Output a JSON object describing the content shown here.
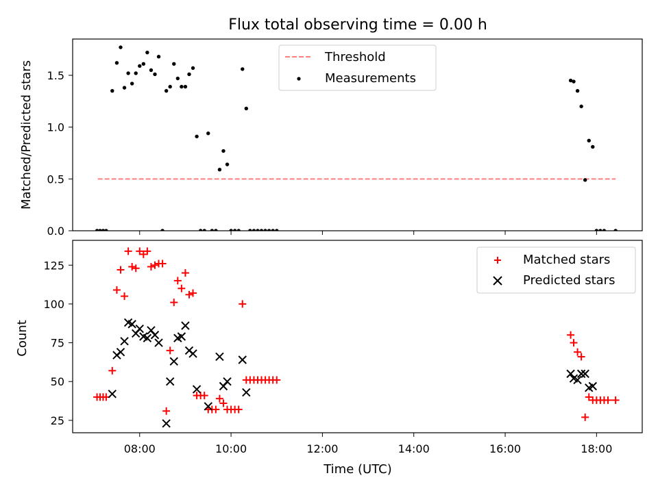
{
  "chart_data": [
    {
      "type": "scatter",
      "title": "Flux total observing time = 0.00 h",
      "xlabel": "",
      "ylabel": "Matched/Predicted stars",
      "xlim": [
        "06:32",
        "19:00"
      ],
      "ylim": [
        0,
        1.85
      ],
      "yticks": [
        0.0,
        0.5,
        1.0,
        1.5
      ],
      "ytick_labels": [
        "0.0",
        "0.5",
        "1.0",
        "1.5"
      ],
      "legend_position": "top-center",
      "threshold": {
        "name": "Threshold",
        "value": 0.5,
        "x_start": "07:05",
        "x_end": "18:25",
        "color": "#ff7f7f",
        "style": "dashed"
      },
      "series": [
        {
          "name": "Measurements",
          "color": "#000000",
          "marker": "dot",
          "points": [
            [
              "07:04",
              0.0
            ],
            [
              "07:08",
              0.0
            ],
            [
              "07:12",
              0.0
            ],
            [
              "07:16",
              0.0
            ],
            [
              "07:24",
              1.35
            ],
            [
              "07:30",
              1.62
            ],
            [
              "07:35",
              1.77
            ],
            [
              "07:40",
              1.38
            ],
            [
              "07:45",
              1.52
            ],
            [
              "07:50",
              1.42
            ],
            [
              "07:55",
              1.52
            ],
            [
              "08:00",
              1.59
            ],
            [
              "08:05",
              1.61
            ],
            [
              "08:10",
              1.72
            ],
            [
              "08:15",
              1.55
            ],
            [
              "08:20",
              1.51
            ],
            [
              "08:25",
              1.68
            ],
            [
              "08:30",
              0.0
            ],
            [
              "08:35",
              1.35
            ],
            [
              "08:40",
              1.39
            ],
            [
              "08:45",
              1.61
            ],
            [
              "08:50",
              1.47
            ],
            [
              "08:55",
              1.39
            ],
            [
              "09:00",
              1.39
            ],
            [
              "09:05",
              1.51
            ],
            [
              "09:10",
              1.57
            ],
            [
              "09:15",
              0.91
            ],
            [
              "09:20",
              0.0
            ],
            [
              "09:25",
              0.0
            ],
            [
              "09:30",
              0.94
            ],
            [
              "09:35",
              0.0
            ],
            [
              "09:40",
              0.0
            ],
            [
              "09:45",
              0.59
            ],
            [
              "09:50",
              0.77
            ],
            [
              "09:55",
              0.64
            ],
            [
              "10:00",
              0.0
            ],
            [
              "10:05",
              0.0
            ],
            [
              "10:10",
              0.0
            ],
            [
              "10:15",
              1.56
            ],
            [
              "10:20",
              1.18
            ],
            [
              "10:25",
              0.0
            ],
            [
              "10:30",
              0.0
            ],
            [
              "10:35",
              0.0
            ],
            [
              "10:40",
              0.0
            ],
            [
              "10:45",
              0.0
            ],
            [
              "10:50",
              0.0
            ],
            [
              "10:55",
              0.0
            ],
            [
              "11:00",
              0.0
            ],
            [
              "17:26",
              1.45
            ],
            [
              "17:30",
              1.44
            ],
            [
              "17:35",
              1.35
            ],
            [
              "17:40",
              1.2
            ],
            [
              "17:45",
              0.49
            ],
            [
              "17:50",
              0.87
            ],
            [
              "17:55",
              0.81
            ],
            [
              "18:00",
              0.0
            ],
            [
              "18:05",
              0.0
            ],
            [
              "18:10",
              0.0
            ],
            [
              "18:25",
              0.0
            ]
          ]
        }
      ]
    },
    {
      "type": "scatter",
      "title": "",
      "xlabel": "Time (UTC)",
      "ylabel": "Count",
      "xlim": [
        "06:32",
        "19:00"
      ],
      "ylim": [
        17,
        141
      ],
      "xticks": [
        "08:00",
        "10:00",
        "12:00",
        "14:00",
        "16:00",
        "18:00"
      ],
      "yticks": [
        25,
        50,
        75,
        100,
        125
      ],
      "ytick_labels": [
        "25",
        "50",
        "75",
        "100",
        "125"
      ],
      "legend_position": "top-right",
      "series": [
        {
          "name": "Matched stars",
          "color": "#ff0000",
          "marker": "plus",
          "points": [
            [
              "07:04",
              40
            ],
            [
              "07:08",
              40
            ],
            [
              "07:12",
              40
            ],
            [
              "07:16",
              40
            ],
            [
              "07:24",
              57
            ],
            [
              "07:30",
              109
            ],
            [
              "07:35",
              122
            ],
            [
              "07:40",
              105
            ],
            [
              "07:45",
              134
            ],
            [
              "07:50",
              124
            ],
            [
              "07:55",
              123
            ],
            [
              "08:00",
              134
            ],
            [
              "08:05",
              132
            ],
            [
              "08:10",
              134
            ],
            [
              "08:15",
              124
            ],
            [
              "08:20",
              125
            ],
            [
              "08:25",
              126
            ],
            [
              "08:30",
              126
            ],
            [
              "08:35",
              31
            ],
            [
              "08:40",
              70
            ],
            [
              "08:45",
              101
            ],
            [
              "08:50",
              115
            ],
            [
              "08:55",
              110
            ],
            [
              "09:00",
              120
            ],
            [
              "09:05",
              106
            ],
            [
              "09:10",
              107
            ],
            [
              "09:15",
              41
            ],
            [
              "09:20",
              41
            ],
            [
              "09:25",
              41
            ],
            [
              "09:30",
              32
            ],
            [
              "09:35",
              32
            ],
            [
              "09:40",
              32
            ],
            [
              "09:45",
              39
            ],
            [
              "09:50",
              36
            ],
            [
              "09:55",
              32
            ],
            [
              "10:00",
              32
            ],
            [
              "10:05",
              32
            ],
            [
              "10:10",
              32
            ],
            [
              "10:15",
              100
            ],
            [
              "10:20",
              51
            ],
            [
              "10:25",
              51
            ],
            [
              "10:30",
              51
            ],
            [
              "10:35",
              51
            ],
            [
              "10:40",
              51
            ],
            [
              "10:45",
              51
            ],
            [
              "10:50",
              51
            ],
            [
              "10:55",
              51
            ],
            [
              "11:00",
              51
            ],
            [
              "17:26",
              80
            ],
            [
              "17:30",
              75
            ],
            [
              "17:35",
              69
            ],
            [
              "17:40",
              66
            ],
            [
              "17:45",
              27
            ],
            [
              "17:50",
              40
            ],
            [
              "17:55",
              38
            ],
            [
              "18:00",
              38
            ],
            [
              "18:05",
              38
            ],
            [
              "18:10",
              38
            ],
            [
              "18:15",
              38
            ],
            [
              "18:25",
              38
            ]
          ]
        },
        {
          "name": "Predicted stars",
          "color": "#000000",
          "marker": "x",
          "points": [
            [
              "07:24",
              42
            ],
            [
              "07:30",
              67
            ],
            [
              "07:35",
              69
            ],
            [
              "07:40",
              76
            ],
            [
              "07:45",
              88
            ],
            [
              "07:50",
              87
            ],
            [
              "07:55",
              81
            ],
            [
              "08:00",
              84
            ],
            [
              "08:05",
              79
            ],
            [
              "08:10",
              78
            ],
            [
              "08:15",
              83
            ],
            [
              "08:20",
              80
            ],
            [
              "08:25",
              75
            ],
            [
              "08:35",
              23
            ],
            [
              "08:40",
              50
            ],
            [
              "08:45",
              63
            ],
            [
              "08:50",
              78
            ],
            [
              "08:55",
              79
            ],
            [
              "09:00",
              86
            ],
            [
              "09:05",
              70
            ],
            [
              "09:10",
              68
            ],
            [
              "09:15",
              45
            ],
            [
              "09:30",
              34
            ],
            [
              "09:45",
              66
            ],
            [
              "09:50",
              47
            ],
            [
              "09:55",
              50
            ],
            [
              "10:15",
              64
            ],
            [
              "10:20",
              43
            ],
            [
              "17:26",
              55
            ],
            [
              "17:30",
              52
            ],
            [
              "17:35",
              51
            ],
            [
              "17:40",
              55
            ],
            [
              "17:45",
              55
            ],
            [
              "17:50",
              46
            ],
            [
              "17:55",
              47
            ]
          ]
        }
      ]
    }
  ]
}
